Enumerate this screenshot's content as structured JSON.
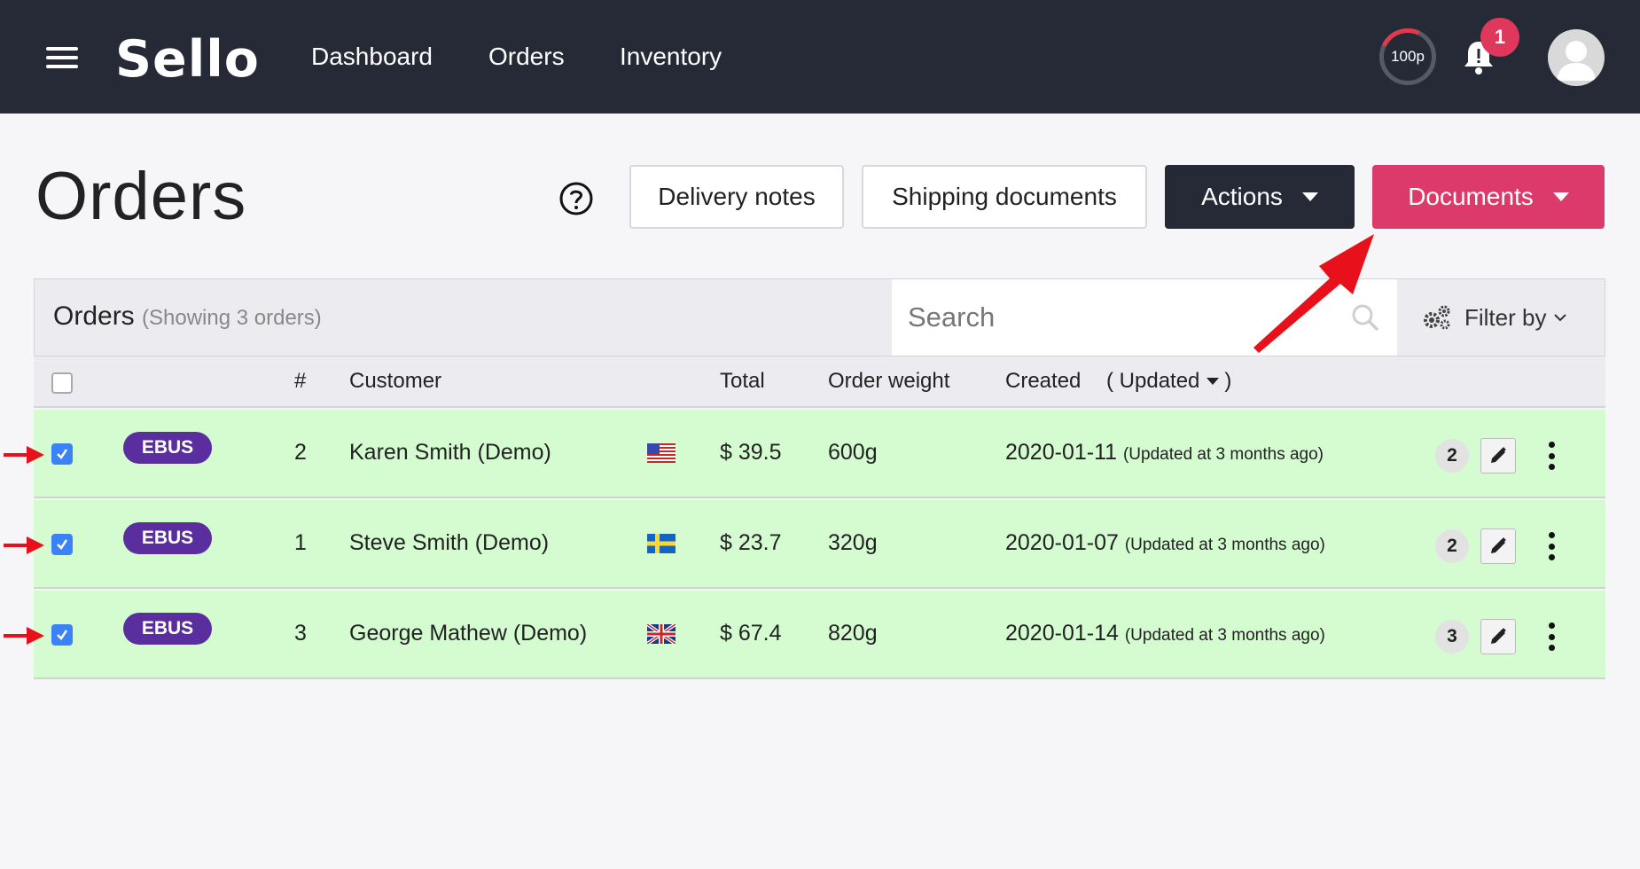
{
  "nav": {
    "brand": "Sell",
    "brand_o": "o",
    "links": [
      "Dashboard",
      "Orders",
      "Inventory"
    ],
    "quota": "100p",
    "notification_count": "1"
  },
  "page": {
    "title": "Orders",
    "buttons": {
      "delivery_notes": "Delivery notes",
      "shipping_documents": "Shipping documents",
      "actions": "Actions",
      "documents": "Documents"
    }
  },
  "panel": {
    "title": "Orders",
    "count_label": "(Showing 3 orders)",
    "search_placeholder": "Search",
    "filter_label": "Filter by"
  },
  "columns": {
    "number": "#",
    "customer": "Customer",
    "total": "Total",
    "weight": "Order weight",
    "created": "Created",
    "updated": "( Updated"
  },
  "orders": [
    {
      "tag": "EBUS",
      "number": "2",
      "customer": "Karen Smith (Demo)",
      "flag": "us",
      "total": "$ 39.5",
      "weight": "600g",
      "created": "2020-01-11",
      "updated": "(Updated at 3 months ago)",
      "count": "2"
    },
    {
      "tag": "EBUS",
      "number": "1",
      "customer": "Steve Smith (Demo)",
      "flag": "se",
      "total": "$ 23.7",
      "weight": "320g",
      "created": "2020-01-07",
      "updated": "(Updated at 3 months ago)",
      "count": "2"
    },
    {
      "tag": "EBUS",
      "number": "3",
      "customer": "George Mathew (Demo)",
      "flag": "gb",
      "total": "$ 67.4",
      "weight": "820g",
      "created": "2020-01-14",
      "updated": "(Updated at 3 months ago)",
      "count": "3"
    }
  ],
  "colors": {
    "topbar": "#262a36",
    "accent_pink": "#dc3a6a",
    "tag_purple": "#5b2ea0",
    "row_green": "#d4fcd0",
    "checkbox_blue": "#3b82f6",
    "annotation_red": "#e8101a"
  },
  "icons": [
    "menu-icon",
    "bell-icon",
    "avatar-icon",
    "help-circle-icon",
    "search-icon",
    "gears-icon",
    "chevron-down-icon",
    "pencil-icon",
    "kebab-icon",
    "check-icon"
  ]
}
